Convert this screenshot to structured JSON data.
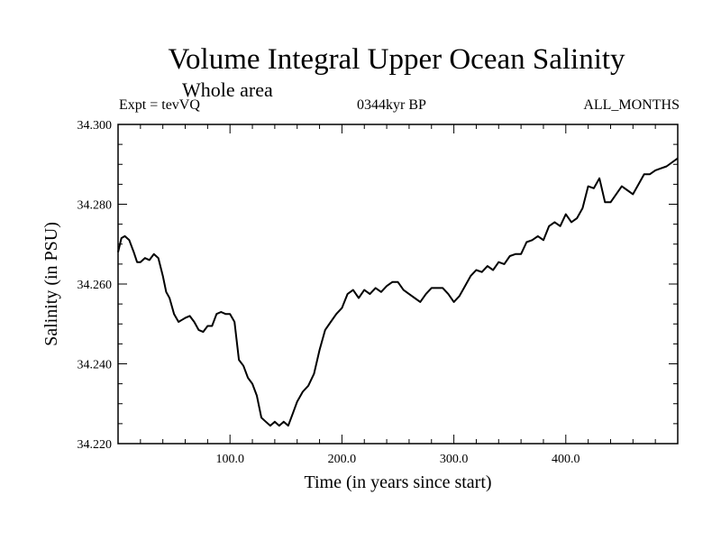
{
  "chart_data": {
    "type": "line",
    "title": "Volume Integral Upper Ocean Salinity",
    "subtitle": "Whole area",
    "header_left": "Expt = tevVQ",
    "header_center": "0344kyr BP",
    "header_right": "ALL_MONTHS",
    "xlabel": "Time (in years since start)",
    "ylabel": "Salinity (in PSU)",
    "xlim": [
      0,
      500
    ],
    "ylim": [
      34.22,
      34.3
    ],
    "x_ticks": [
      100,
      200,
      300,
      400
    ],
    "x_tick_labels": [
      "100.0",
      "200.0",
      "300.0",
      "400.0"
    ],
    "y_ticks": [
      34.22,
      34.24,
      34.26,
      34.28,
      34.3
    ],
    "y_tick_labels": [
      "34.220",
      "34.240",
      "34.260",
      "34.280",
      "34.300"
    ],
    "line_color": "#000000",
    "series": [
      {
        "x": [
          0,
          3,
          6,
          10,
          14,
          17,
          20,
          24,
          28,
          32,
          36,
          40,
          43,
          46,
          50,
          54,
          57,
          60,
          64,
          68,
          72,
          76,
          80,
          84,
          88,
          92,
          96,
          100,
          104,
          108,
          112,
          116,
          120,
          124,
          128,
          132,
          136,
          140,
          144,
          148,
          152,
          156,
          160,
          165,
          170,
          175,
          180,
          185,
          190,
          195,
          200,
          205,
          210,
          215,
          220,
          225,
          230,
          235,
          240,
          245,
          250,
          255,
          260,
          265,
          270,
          275,
          280,
          285,
          290,
          295,
          300,
          305,
          310,
          315,
          320,
          325,
          330,
          335,
          340,
          345,
          350,
          355,
          360,
          365,
          370,
          375,
          380,
          385,
          390,
          395,
          400,
          405,
          410,
          415,
          420,
          425,
          430,
          435,
          440,
          445,
          450,
          455,
          460,
          465,
          470,
          475,
          480,
          485,
          490,
          495,
          500
        ],
        "y": [
          34.268,
          34.2715,
          34.272,
          34.271,
          34.268,
          34.2655,
          34.2655,
          34.2665,
          34.266,
          34.2675,
          34.2665,
          34.262,
          34.258,
          34.2565,
          34.2525,
          34.2505,
          34.251,
          34.2515,
          34.252,
          34.2505,
          34.2485,
          34.248,
          34.2495,
          34.2495,
          34.2525,
          34.253,
          34.2525,
          34.2525,
          34.2505,
          34.241,
          34.2395,
          34.2365,
          34.235,
          34.232,
          34.2265,
          34.2255,
          34.2245,
          34.2255,
          34.2245,
          34.2255,
          34.2245,
          34.2275,
          34.2305,
          34.233,
          34.2345,
          34.2375,
          34.2435,
          34.2485,
          34.2505,
          34.2525,
          34.254,
          34.2575,
          34.2585,
          34.2565,
          34.2585,
          34.2575,
          34.259,
          34.258,
          34.2595,
          34.2605,
          34.2605,
          34.2585,
          34.2575,
          34.2565,
          34.2555,
          34.2575,
          34.259,
          34.259,
          34.259,
          34.2575,
          34.2555,
          34.257,
          34.2595,
          34.262,
          34.2635,
          34.263,
          34.2645,
          34.2635,
          34.2655,
          34.265,
          34.267,
          34.2675,
          34.2675,
          34.2705,
          34.271,
          34.272,
          34.271,
          34.2745,
          34.2755,
          34.2745,
          34.2775,
          34.2755,
          34.2765,
          34.279,
          34.2845,
          34.284,
          34.2865,
          34.2805,
          34.2805,
          34.2825,
          34.2845,
          34.2835,
          34.2825,
          34.285,
          34.2875,
          34.2875,
          34.2885,
          34.289,
          34.2895,
          34.2905,
          34.2915
        ]
      }
    ]
  }
}
